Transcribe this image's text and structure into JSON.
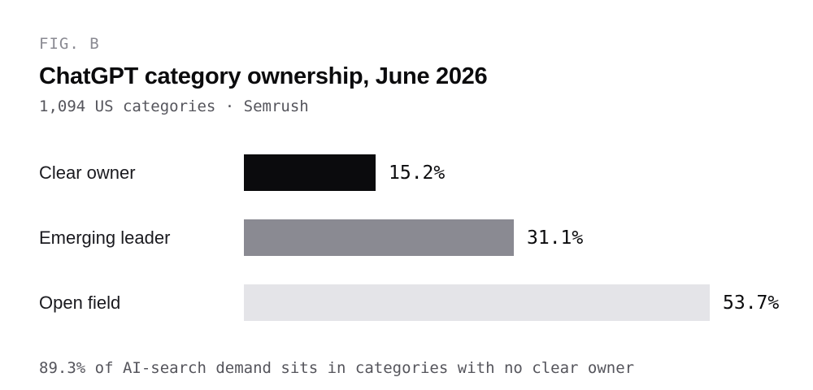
{
  "fig_label": "FIG. B",
  "chart_data": {
    "type": "bar",
    "orientation": "horizontal",
    "title": "ChatGPT category ownership, June 2026",
    "subtitle": "1,094 US categories · Semrush",
    "categories": [
      "Clear owner",
      "Emerging leader",
      "Open field"
    ],
    "values": [
      15.2,
      31.1,
      53.7
    ],
    "value_labels": [
      "15.2%",
      "31.1%",
      "53.7%"
    ],
    "colors": [
      "#0b0b0d",
      "#8a8a92",
      "#e4e4e8"
    ],
    "xlim": [
      0,
      53.7
    ],
    "grid": false,
    "footnote": "89.3% of AI-search demand sits in categories with no clear owner"
  }
}
